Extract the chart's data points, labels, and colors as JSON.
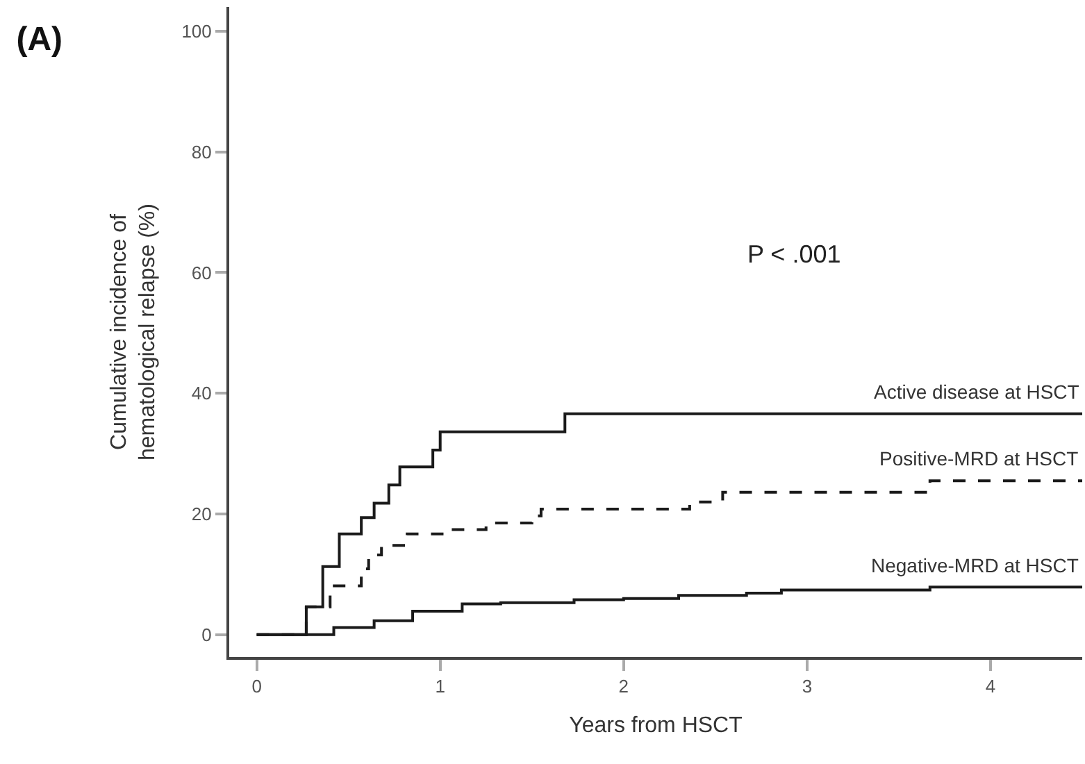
{
  "chart_data": {
    "type": "step",
    "title": "(A)",
    "xlabel": "Years from HSCT",
    "ylabel": "Cumulative incidence of\nhematological relapse (%)",
    "xlim": [
      -0.15,
      4.5
    ],
    "xticks": [
      0,
      1,
      2,
      3,
      4
    ],
    "ylim": [
      -3.7,
      104
    ],
    "yticks": [
      0,
      20,
      40,
      60,
      80,
      100
    ],
    "annotations": [
      "P < .001"
    ],
    "series": [
      {
        "name": "Active disease at HSCT",
        "color": "#1a1a1a",
        "line_style": "solid",
        "x": [
          0,
          0.27,
          0.36,
          0.45,
          0.57,
          0.64,
          0.72,
          0.78,
          0.96,
          1.0,
          1.68,
          4.5
        ],
        "values": [
          0,
          4.6,
          11.3,
          16.7,
          19.4,
          21.8,
          24.8,
          27.8,
          30.6,
          33.6,
          36.6,
          36.6
        ]
      },
      {
        "name": "Positive-MRD at HSCT",
        "color": "#1a1a1a",
        "line_style": "dashed",
        "x": [
          0,
          0.27,
          0.4,
          0.57,
          0.61,
          0.68,
          0.82,
          1.05,
          1.25,
          1.5,
          1.55,
          2.36,
          2.54,
          3.67,
          4.5
        ],
        "values": [
          0,
          4.6,
          8.1,
          10.9,
          13.2,
          14.8,
          16.7,
          17.4,
          18.5,
          19.7,
          20.8,
          22.0,
          23.6,
          25.5,
          25.5
        ]
      },
      {
        "name": "Negative-MRD at HSCT",
        "color": "#1a1a1a",
        "line_style": "solid",
        "x": [
          0,
          0.34,
          0.42,
          0.64,
          0.85,
          1.12,
          1.33,
          1.73,
          2.0,
          2.3,
          2.67,
          2.86,
          3.67,
          4.5
        ],
        "values": [
          0,
          0,
          1.2,
          2.3,
          3.9,
          5.1,
          5.3,
          5.8,
          6.0,
          6.5,
          6.9,
          7.4,
          7.9,
          7.9
        ]
      }
    ]
  }
}
